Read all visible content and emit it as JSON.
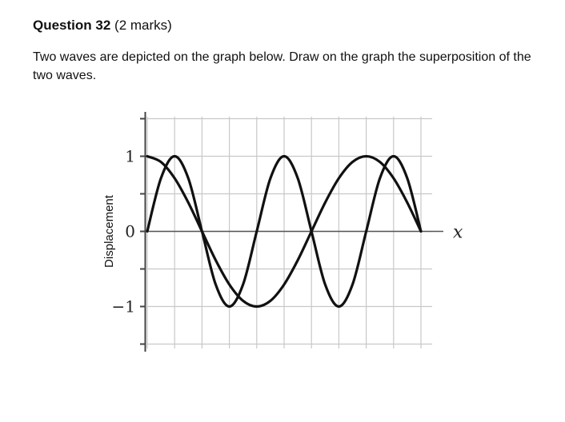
{
  "question": {
    "title": "Question 32",
    "marks": "(2 marks)",
    "text": "Two waves are depicted on the graph below. Draw on the graph the superposition of the two waves."
  },
  "chart_data": {
    "type": "line",
    "title": "",
    "xlabel": "x",
    "ylabel": "Displacement",
    "ylim": [
      -1.5,
      1.5
    ],
    "xlim": [
      0,
      10
    ],
    "yticks": [
      1,
      0,
      -1
    ],
    "ytick_labels": [
      "1",
      "0",
      "−1"
    ],
    "grid": true,
    "line_color": "#111111",
    "grid_color": "#c8c8c8",
    "series": [
      {
        "x": [
          0,
          0.5,
          1,
          1.5,
          2,
          2.5,
          3,
          3.5,
          4,
          4.5,
          5,
          5.5,
          6,
          6.5,
          7,
          7.5,
          8,
          8.5,
          9,
          9.5,
          10
        ],
        "values": [
          0,
          0.707,
          1,
          0.707,
          0,
          -0.707,
          -1,
          -0.707,
          0,
          0.707,
          1,
          0.707,
          0,
          -0.707,
          -1,
          -0.707,
          0,
          0.707,
          1,
          0.707,
          0
        ]
      },
      {
        "x": [
          0,
          0.5,
          1,
          1.5,
          2,
          2.5,
          3,
          3.5,
          4,
          4.5,
          5,
          5.5,
          6,
          6.5,
          7,
          7.5,
          8,
          8.5,
          9,
          9.5,
          10
        ],
        "values": [
          1,
          0.924,
          0.707,
          0.383,
          0,
          -0.383,
          -0.707,
          -0.924,
          -1,
          -0.924,
          -0.707,
          -0.383,
          0,
          0.383,
          0.707,
          0.924,
          1,
          0.924,
          0.707,
          0.383,
          0
        ]
      }
    ]
  }
}
